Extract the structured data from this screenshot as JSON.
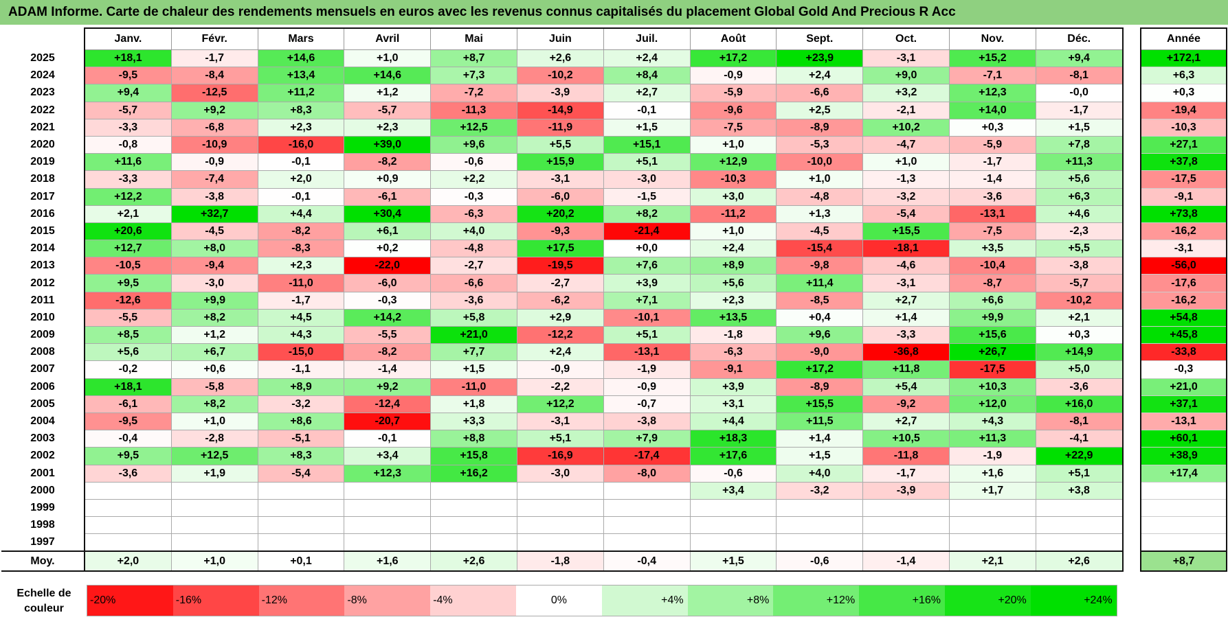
{
  "title": "ADAM Informe. Carte de chaleur des rendements mensuels en euros avec les revenus connus capitalisés du placement Global Gold And Precious R Acc",
  "chart_data": {
    "type": "heatmap",
    "title": "ADAM Informe. Carte de chaleur des rendements mensuels en euros avec les revenus connus capitalisés du placement Global Gold And Precious R Acc",
    "months": [
      "Janv.",
      "Févr.",
      "Mars",
      "Avril",
      "Mai",
      "Juin",
      "Juil.",
      "Août",
      "Sept.",
      "Oct.",
      "Nov.",
      "Déc."
    ],
    "annual_header": "Année",
    "rows": [
      {
        "year": "2025",
        "values": [
          "+18,1",
          "-1,7",
          "+14,6",
          "+1,0",
          "+8,7",
          "+2,6",
          "+2,4",
          "+17,2",
          "+23,9",
          "-3,1",
          "+15,2",
          "+9,4"
        ],
        "annual": "+172,1"
      },
      {
        "year": "2024",
        "values": [
          "-9,5",
          "-8,4",
          "+13,4",
          "+14,6",
          "+7,3",
          "-10,2",
          "+8,4",
          "-0,9",
          "+2,4",
          "+9,0",
          "-7,1",
          "-8,1"
        ],
        "annual": "+6,3"
      },
      {
        "year": "2023",
        "values": [
          "+9,4",
          "-12,5",
          "+11,2",
          "+1,2",
          "-7,2",
          "-3,9",
          "+2,7",
          "-5,9",
          "-6,6",
          "+3,2",
          "+12,3",
          "-0,0"
        ],
        "annual": "+0,3"
      },
      {
        "year": "2022",
        "values": [
          "-5,7",
          "+9,2",
          "+8,3",
          "-5,7",
          "-11,3",
          "-14,9",
          "-0,1",
          "-9,6",
          "+2,5",
          "-2,1",
          "+14,0",
          "-1,7"
        ],
        "annual": "-19,4"
      },
      {
        "year": "2021",
        "values": [
          "-3,3",
          "-6,8",
          "+2,3",
          "+2,3",
          "+12,5",
          "-11,9",
          "+1,5",
          "-7,5",
          "-8,9",
          "+10,2",
          "+0,3",
          "+1,5"
        ],
        "annual": "-10,3"
      },
      {
        "year": "2020",
        "values": [
          "-0,8",
          "-10,9",
          "-16,0",
          "+39,0",
          "+9,6",
          "+5,5",
          "+15,1",
          "+1,0",
          "-5,3",
          "-4,7",
          "-5,9",
          "+7,8"
        ],
        "annual": "+27,1"
      },
      {
        "year": "2019",
        "values": [
          "+11,6",
          "-0,9",
          "-0,1",
          "-8,2",
          "-0,6",
          "+15,9",
          "+5,1",
          "+12,9",
          "-10,0",
          "+1,0",
          "-1,7",
          "+11,3"
        ],
        "annual": "+37,8"
      },
      {
        "year": "2018",
        "values": [
          "-3,3",
          "-7,4",
          "+2,0",
          "+0,9",
          "+2,2",
          "-3,1",
          "-3,0",
          "-10,3",
          "+1,0",
          "-1,3",
          "-1,4",
          "+5,6"
        ],
        "annual": "-17,5"
      },
      {
        "year": "2017",
        "values": [
          "+12,2",
          "-3,8",
          "-0,1",
          "-6,1",
          "-0,3",
          "-6,0",
          "-1,5",
          "+3,0",
          "-4,8",
          "-3,2",
          "-3,6",
          "+6,3"
        ],
        "annual": "-9,1"
      },
      {
        "year": "2016",
        "values": [
          "+2,1",
          "+32,7",
          "+4,4",
          "+30,4",
          "-6,3",
          "+20,2",
          "+8,2",
          "-11,2",
          "+1,3",
          "-5,4",
          "-13,1",
          "+4,6"
        ],
        "annual": "+73,8"
      },
      {
        "year": "2015",
        "values": [
          "+20,6",
          "-4,5",
          "-8,2",
          "+6,1",
          "+4,0",
          "-9,3",
          "-21,4",
          "+1,0",
          "-4,5",
          "+15,5",
          "-7,5",
          "-2,3"
        ],
        "annual": "-16,2"
      },
      {
        "year": "2014",
        "values": [
          "+12,7",
          "+8,0",
          "-8,3",
          "+0,2",
          "-4,8",
          "+17,5",
          "+0,0",
          "+2,4",
          "-15,4",
          "-18,1",
          "+3,5",
          "+5,5"
        ],
        "annual": "-3,1"
      },
      {
        "year": "2013",
        "values": [
          "-10,5",
          "-9,4",
          "+2,3",
          "-22,0",
          "-2,7",
          "-19,5",
          "+7,6",
          "+8,9",
          "-9,8",
          "-4,6",
          "-10,4",
          "-3,8"
        ],
        "annual": "-56,0"
      },
      {
        "year": "2012",
        "values": [
          "+9,5",
          "-3,0",
          "-11,0",
          "-6,0",
          "-6,6",
          "-2,7",
          "+3,9",
          "+5,6",
          "+11,4",
          "-3,1",
          "-8,7",
          "-5,7"
        ],
        "annual": "-17,6"
      },
      {
        "year": "2011",
        "values": [
          "-12,6",
          "+9,9",
          "-1,7",
          "-0,3",
          "-3,6",
          "-6,2",
          "+7,1",
          "+2,3",
          "-8,5",
          "+2,7",
          "+6,6",
          "-10,2"
        ],
        "annual": "-16,2"
      },
      {
        "year": "2010",
        "values": [
          "-5,5",
          "+8,2",
          "+4,5",
          "+14,2",
          "+5,8",
          "+2,9",
          "-10,1",
          "+13,5",
          "+0,4",
          "+1,4",
          "+9,9",
          "+2,1"
        ],
        "annual": "+54,8"
      },
      {
        "year": "2009",
        "values": [
          "+8,5",
          "+1,2",
          "+4,3",
          "-5,5",
          "+21,0",
          "-12,2",
          "+5,1",
          "-1,8",
          "+9,6",
          "-3,3",
          "+15,6",
          "+0,3"
        ],
        "annual": "+45,8"
      },
      {
        "year": "2008",
        "values": [
          "+5,6",
          "+6,7",
          "-15,0",
          "-8,2",
          "+7,7",
          "+2,4",
          "-13,1",
          "-6,3",
          "-9,0",
          "-36,8",
          "+26,7",
          "+14,9"
        ],
        "annual": "-33,8"
      },
      {
        "year": "2007",
        "values": [
          "-0,2",
          "+0,6",
          "-1,1",
          "-1,4",
          "+1,5",
          "-0,9",
          "-1,9",
          "-9,1",
          "+17,2",
          "+11,8",
          "-17,5",
          "+5,0"
        ],
        "annual": "-0,3"
      },
      {
        "year": "2006",
        "values": [
          "+18,1",
          "-5,8",
          "+8,9",
          "+9,2",
          "-11,0",
          "-2,2",
          "-0,9",
          "+3,9",
          "-8,9",
          "+5,4",
          "+10,3",
          "-3,6"
        ],
        "annual": "+21,0"
      },
      {
        "year": "2005",
        "values": [
          "-6,1",
          "+8,2",
          "-3,2",
          "-12,4",
          "+1,8",
          "+12,2",
          "-0,7",
          "+3,1",
          "+15,5",
          "-9,2",
          "+12,0",
          "+16,0"
        ],
        "annual": "+37,1"
      },
      {
        "year": "2004",
        "values": [
          "-9,5",
          "+1,0",
          "+8,6",
          "-20,7",
          "+3,3",
          "-3,1",
          "-3,8",
          "+4,4",
          "+11,5",
          "+2,7",
          "+4,3",
          "-8,1"
        ],
        "annual": "-13,1"
      },
      {
        "year": "2003",
        "values": [
          "-0,4",
          "-2,8",
          "-5,1",
          "-0,1",
          "+8,8",
          "+5,1",
          "+7,9",
          "+18,3",
          "+1,4",
          "+10,5",
          "+11,3",
          "-4,1"
        ],
        "annual": "+60,1"
      },
      {
        "year": "2002",
        "values": [
          "+9,5",
          "+12,5",
          "+8,3",
          "+3,4",
          "+15,8",
          "-16,9",
          "-17,4",
          "+17,6",
          "+1,5",
          "-11,8",
          "-1,9",
          "+22,9"
        ],
        "annual": "+38,9"
      },
      {
        "year": "2001",
        "values": [
          "-3,6",
          "+1,9",
          "-5,4",
          "+12,3",
          "+16,2",
          "-3,0",
          "-8,0",
          "-0,6",
          "+4,0",
          "-1,7",
          "+1,6",
          "+5,1"
        ],
        "annual": "+17,4"
      },
      {
        "year": "2000",
        "values": [
          "",
          "",
          "",
          "",
          "",
          "",
          "",
          "+3,4",
          "-3,2",
          "-3,9",
          "+1,7",
          "+3,8"
        ],
        "annual": ""
      },
      {
        "year": "1999",
        "values": [
          "",
          "",
          "",
          "",
          "",
          "",
          "",
          "",
          "",
          "",
          "",
          ""
        ],
        "annual": ""
      },
      {
        "year": "1998",
        "values": [
          "",
          "",
          "",
          "",
          "",
          "",
          "",
          "",
          "",
          "",
          "",
          ""
        ],
        "annual": ""
      },
      {
        "year": "1997",
        "values": [
          "",
          "",
          "",
          "",
          "",
          "",
          "",
          "",
          "",
          "",
          "",
          ""
        ],
        "annual": ""
      }
    ],
    "average": {
      "label": "Moy.",
      "values": [
        "+2,0",
        "+1,0",
        "+0,1",
        "+1,6",
        "+2,6",
        "-1,8",
        "-0,4",
        "+1,5",
        "-0,6",
        "-1,4",
        "+2,1",
        "+2,6"
      ],
      "annual": "+8,7"
    },
    "scale": {
      "label_line1": "Echelle de",
      "label_line2": "couleur",
      "steps": [
        "-20%",
        "-16%",
        "-12%",
        "-8%",
        "-4%",
        "0%",
        "+4%",
        "+8%",
        "+12%",
        "+16%",
        "+20%",
        "+24%"
      ]
    }
  },
  "colors": {
    "title_bg": "#8fd080",
    "neg_max": "#ff0000",
    "pos_max": "#00e000",
    "neutral": "#ffffff"
  }
}
